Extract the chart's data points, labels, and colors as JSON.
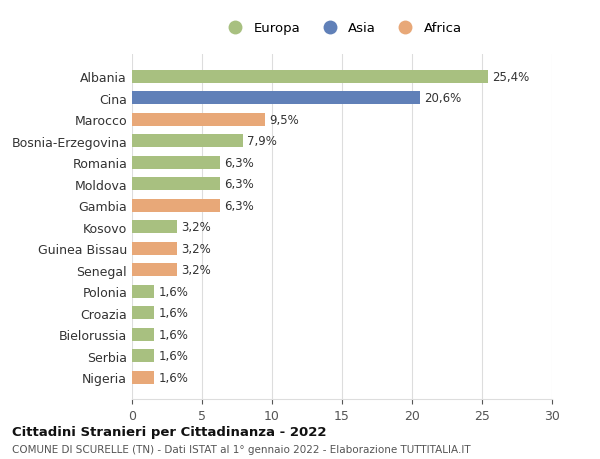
{
  "countries": [
    "Albania",
    "Cina",
    "Marocco",
    "Bosnia-Erzegovina",
    "Romania",
    "Moldova",
    "Gambia",
    "Kosovo",
    "Guinea Bissau",
    "Senegal",
    "Polonia",
    "Croazia",
    "Bielorussia",
    "Serbia",
    "Nigeria"
  ],
  "values": [
    25.4,
    20.6,
    9.5,
    7.9,
    6.3,
    6.3,
    6.3,
    3.2,
    3.2,
    3.2,
    1.6,
    1.6,
    1.6,
    1.6,
    1.6
  ],
  "labels": [
    "25,4%",
    "20,6%",
    "9,5%",
    "7,9%",
    "6,3%",
    "6,3%",
    "6,3%",
    "3,2%",
    "3,2%",
    "3,2%",
    "1,6%",
    "1,6%",
    "1,6%",
    "1,6%",
    "1,6%"
  ],
  "continents": [
    "Europa",
    "Asia",
    "Africa",
    "Europa",
    "Europa",
    "Europa",
    "Africa",
    "Europa",
    "Africa",
    "Africa",
    "Europa",
    "Europa",
    "Europa",
    "Europa",
    "Africa"
  ],
  "colors": {
    "Europa": "#a8c080",
    "Asia": "#6080b8",
    "Africa": "#e8a878"
  },
  "legend_entries": [
    "Europa",
    "Asia",
    "Africa"
  ],
  "title1": "Cittadini Stranieri per Cittadinanza - 2022",
  "title2": "COMUNE DI SCURELLE (TN) - Dati ISTAT al 1° gennaio 2022 - Elaborazione TUTTITALIA.IT",
  "xlim": [
    0,
    30
  ],
  "xticks": [
    0,
    5,
    10,
    15,
    20,
    25,
    30
  ],
  "background_color": "#ffffff",
  "grid_color": "#dddddd"
}
